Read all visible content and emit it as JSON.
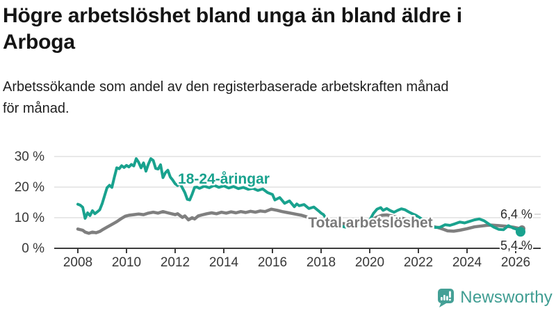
{
  "header": {
    "title_line1": "Högre arbetslöshet bland unga än bland äldre i",
    "title_line2": "Arboga",
    "subtitle_line1": "Arbetssökande som andel av den registerbaserade arbetskraften månad",
    "subtitle_line2": "för månad."
  },
  "branding": {
    "logo_text": "Newsworthy",
    "logo_icon": "speech-bubble-bar-chart-icon",
    "logo_color": "#3f9d92"
  },
  "chart_data": {
    "type": "line",
    "title": "Högre arbetslöshet bland unga än bland äldre i Arboga",
    "subtitle": "Arbetssökande som andel av den registerbaserade arbetskraften månad för månad.",
    "unit": "%",
    "grid": "horizontal",
    "legend": "inline-series-labels",
    "colors": {
      "grid": "#d9d9d9",
      "axis": "#3c3c3c",
      "leader": "#cfcfcf"
    },
    "x_axis": {
      "tick_labels": [
        "2008",
        "2010",
        "2012",
        "2014",
        "2016",
        "2018",
        "2020",
        "2022",
        "2024",
        "2026"
      ],
      "tick_values": [
        2008,
        2010,
        2012,
        2014,
        2016,
        2018,
        2020,
        2022,
        2024,
        2026
      ],
      "range": [
        2007.0,
        2026.9
      ]
    },
    "y_axis": {
      "ticks": [
        {
          "value": 0,
          "label": "0 %"
        },
        {
          "value": 10,
          "label": "10 %"
        },
        {
          "value": 20,
          "label": "20 %"
        },
        {
          "value": 30,
          "label": "30 %"
        }
      ],
      "range": [
        0,
        31
      ]
    },
    "series": [
      {
        "name": "Total arbetslöshet",
        "color": "#7f7f7f",
        "end_label": "6,4 %",
        "end_value": 6.4,
        "points": [
          [
            2008.0,
            6.3
          ],
          [
            2008.2,
            5.9
          ],
          [
            2008.3,
            5.3
          ],
          [
            2008.45,
            4.9
          ],
          [
            2008.6,
            5.3
          ],
          [
            2008.75,
            5.1
          ],
          [
            2008.9,
            5.5
          ],
          [
            2009.0,
            6.0
          ],
          [
            2009.2,
            6.9
          ],
          [
            2009.4,
            7.8
          ],
          [
            2009.6,
            8.7
          ],
          [
            2009.8,
            9.8
          ],
          [
            2009.95,
            10.5
          ],
          [
            2010.1,
            10.8
          ],
          [
            2010.3,
            11.0
          ],
          [
            2010.5,
            11.2
          ],
          [
            2010.7,
            11.0
          ],
          [
            2010.9,
            11.5
          ],
          [
            2011.1,
            11.8
          ],
          [
            2011.3,
            11.5
          ],
          [
            2011.5,
            12.0
          ],
          [
            2011.7,
            11.6
          ],
          [
            2011.9,
            11.2
          ],
          [
            2012.0,
            11.0
          ],
          [
            2012.1,
            11.3
          ],
          [
            2012.3,
            10.1
          ],
          [
            2012.4,
            10.6
          ],
          [
            2012.55,
            9.3
          ],
          [
            2012.7,
            10.0
          ],
          [
            2012.8,
            9.6
          ],
          [
            2012.95,
            10.6
          ],
          [
            2013.1,
            10.9
          ],
          [
            2013.3,
            11.3
          ],
          [
            2013.5,
            11.6
          ],
          [
            2013.7,
            11.3
          ],
          [
            2013.9,
            11.8
          ],
          [
            2014.1,
            11.5
          ],
          [
            2014.3,
            11.9
          ],
          [
            2014.5,
            11.6
          ],
          [
            2014.7,
            12.0
          ],
          [
            2014.9,
            11.7
          ],
          [
            2015.1,
            12.1
          ],
          [
            2015.3,
            11.8
          ],
          [
            2015.5,
            12.2
          ],
          [
            2015.7,
            12.0
          ],
          [
            2015.95,
            12.8
          ],
          [
            2016.2,
            12.4
          ],
          [
            2016.4,
            12.0
          ],
          [
            2016.6,
            11.7
          ],
          [
            2016.8,
            11.4
          ],
          [
            2017.0,
            11.1
          ],
          [
            2017.2,
            10.8
          ],
          [
            2017.4,
            10.3
          ],
          [
            2017.7,
            9.7
          ],
          [
            2018.0,
            9.1
          ],
          [
            2018.3,
            8.6
          ],
          [
            2018.6,
            8.3
          ],
          [
            2019.0,
            8.0
          ],
          [
            2019.4,
            8.2
          ],
          [
            2019.8,
            8.6
          ],
          [
            2020.1,
            9.4
          ],
          [
            2020.3,
            10.2
          ],
          [
            2020.5,
            10.8
          ],
          [
            2020.7,
            10.9
          ],
          [
            2020.9,
            10.6
          ],
          [
            2021.1,
            10.2
          ],
          [
            2021.4,
            9.7
          ],
          [
            2021.7,
            9.1
          ],
          [
            2022.0,
            8.4
          ],
          [
            2022.3,
            7.7
          ],
          [
            2022.6,
            7.1
          ],
          [
            2022.8,
            6.8
          ],
          [
            2023.0,
            6.3
          ],
          [
            2023.2,
            5.7
          ],
          [
            2023.45,
            5.6
          ],
          [
            2023.7,
            5.9
          ],
          [
            2024.0,
            6.4
          ],
          [
            2024.3,
            7.0
          ],
          [
            2024.5,
            7.2
          ],
          [
            2024.8,
            7.5
          ],
          [
            2025.0,
            7.6
          ],
          [
            2025.3,
            7.4
          ],
          [
            2025.6,
            7.2
          ],
          [
            2025.9,
            6.9
          ],
          [
            2026.2,
            6.4
          ]
        ]
      },
      {
        "name": "18-24-åringar",
        "color": "#19a28e",
        "end_label": "5,4 %",
        "end_value": 5.4,
        "points": [
          [
            2008.0,
            14.4
          ],
          [
            2008.1,
            14.1
          ],
          [
            2008.2,
            13.4
          ],
          [
            2008.3,
            9.8
          ],
          [
            2008.4,
            11.6
          ],
          [
            2008.5,
            10.7
          ],
          [
            2008.6,
            12.3
          ],
          [
            2008.7,
            11.3
          ],
          [
            2008.8,
            11.9
          ],
          [
            2008.9,
            12.6
          ],
          [
            2009.0,
            14.6
          ],
          [
            2009.1,
            17.2
          ],
          [
            2009.2,
            19.8
          ],
          [
            2009.3,
            20.6
          ],
          [
            2009.4,
            19.9
          ],
          [
            2009.5,
            23.2
          ],
          [
            2009.6,
            26.3
          ],
          [
            2009.7,
            26.0
          ],
          [
            2009.8,
            27.0
          ],
          [
            2009.9,
            26.4
          ],
          [
            2010.0,
            27.1
          ],
          [
            2010.1,
            26.6
          ],
          [
            2010.2,
            27.4
          ],
          [
            2010.3,
            26.9
          ],
          [
            2010.4,
            29.3
          ],
          [
            2010.5,
            28.1
          ],
          [
            2010.6,
            26.3
          ],
          [
            2010.7,
            27.9
          ],
          [
            2010.8,
            25.2
          ],
          [
            2010.9,
            27.5
          ],
          [
            2011.0,
            29.3
          ],
          [
            2011.1,
            28.7
          ],
          [
            2011.2,
            26.1
          ],
          [
            2011.3,
            25.9
          ],
          [
            2011.4,
            27.3
          ],
          [
            2011.5,
            23.1
          ],
          [
            2011.6,
            24.7
          ],
          [
            2011.7,
            25.5
          ],
          [
            2011.8,
            23.3
          ],
          [
            2011.9,
            22.3
          ],
          [
            2012.0,
            21.1
          ],
          [
            2012.1,
            20.5
          ],
          [
            2012.2,
            21.2
          ],
          [
            2012.3,
            19.7
          ],
          [
            2012.4,
            18.2
          ],
          [
            2012.5,
            16.0
          ],
          [
            2012.6,
            15.8
          ],
          [
            2012.7,
            17.7
          ],
          [
            2012.8,
            19.9
          ],
          [
            2012.9,
            20.0
          ],
          [
            2013.0,
            19.6
          ],
          [
            2013.2,
            20.3
          ],
          [
            2013.4,
            19.8
          ],
          [
            2013.6,
            20.6
          ],
          [
            2013.8,
            19.9
          ],
          [
            2014.0,
            20.4
          ],
          [
            2014.2,
            19.7
          ],
          [
            2014.4,
            20.2
          ],
          [
            2014.6,
            19.5
          ],
          [
            2014.8,
            19.9
          ],
          [
            2015.0,
            19.3
          ],
          [
            2015.2,
            19.6
          ],
          [
            2015.4,
            18.9
          ],
          [
            2015.6,
            19.4
          ],
          [
            2015.8,
            18.2
          ],
          [
            2016.0,
            17.6
          ],
          [
            2016.1,
            15.8
          ],
          [
            2016.3,
            16.6
          ],
          [
            2016.5,
            14.7
          ],
          [
            2016.7,
            15.5
          ],
          [
            2016.9,
            13.6
          ],
          [
            2017.0,
            14.5
          ],
          [
            2017.1,
            13.9
          ],
          [
            2017.3,
            14.3
          ],
          [
            2017.5,
            13.0
          ],
          [
            2017.7,
            13.5
          ],
          [
            2017.9,
            12.2
          ],
          [
            2018.0,
            11.5
          ],
          [
            2018.1,
            11.0
          ],
          [
            2018.3,
            8.6
          ],
          [
            2018.45,
            7.0
          ],
          [
            2018.6,
            6.8
          ],
          [
            2018.8,
            7.3
          ],
          [
            2019.0,
            6.9
          ],
          [
            2019.2,
            7.4
          ],
          [
            2019.4,
            7.0
          ],
          [
            2019.6,
            7.6
          ],
          [
            2019.8,
            8.0
          ],
          [
            2020.0,
            9.2
          ],
          [
            2020.15,
            11.4
          ],
          [
            2020.3,
            12.8
          ],
          [
            2020.45,
            13.3
          ],
          [
            2020.55,
            12.4
          ],
          [
            2020.7,
            13.0
          ],
          [
            2020.85,
            12.3
          ],
          [
            2021.0,
            11.8
          ],
          [
            2021.15,
            12.4
          ],
          [
            2021.3,
            12.9
          ],
          [
            2021.45,
            12.6
          ],
          [
            2021.6,
            11.9
          ],
          [
            2021.75,
            11.3
          ],
          [
            2021.9,
            10.8
          ],
          [
            2022.1,
            9.8
          ],
          [
            2022.3,
            8.6
          ],
          [
            2022.5,
            7.5
          ],
          [
            2022.7,
            6.8
          ],
          [
            2022.9,
            6.9
          ],
          [
            2023.1,
            7.7
          ],
          [
            2023.3,
            7.5
          ],
          [
            2023.5,
            8.0
          ],
          [
            2023.7,
            8.6
          ],
          [
            2023.9,
            8.3
          ],
          [
            2024.1,
            8.8
          ],
          [
            2024.3,
            9.3
          ],
          [
            2024.5,
            9.6
          ],
          [
            2024.7,
            9.0
          ],
          [
            2024.9,
            7.9
          ],
          [
            2025.1,
            6.9
          ],
          [
            2025.3,
            6.2
          ],
          [
            2025.5,
            6.1
          ],
          [
            2025.7,
            7.4
          ],
          [
            2025.9,
            6.6
          ],
          [
            2026.05,
            6.2
          ],
          [
            2026.2,
            5.4
          ]
        ]
      }
    ]
  }
}
